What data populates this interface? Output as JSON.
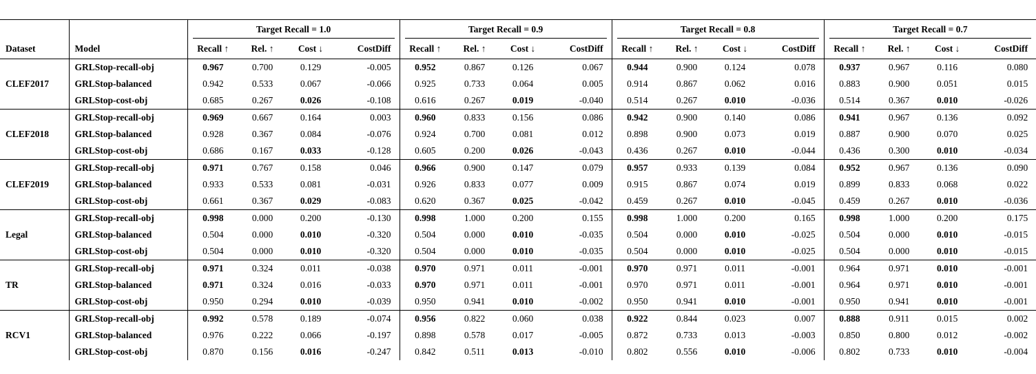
{
  "colors": {
    "text": "#000000",
    "rule": "#000000",
    "background": "#ffffff"
  },
  "table": {
    "dataset_header": "Dataset",
    "model_header": "Model",
    "col_groups": [
      {
        "label": "Target Recall = 1.0"
      },
      {
        "label": "Target Recall = 0.9"
      },
      {
        "label": "Target Recall = 0.8"
      },
      {
        "label": "Target Recall = 0.7"
      }
    ],
    "sub_headers": [
      "Recall ↑",
      "Rel. ↑",
      "Cost ↓",
      "CostDiff"
    ],
    "blocks": [
      {
        "dataset": "CLEF2017",
        "rows": [
          {
            "model": "GRLStop-recall-obj",
            "bold": [
              0,
              4,
              8,
              12
            ],
            "values": [
              "0.967",
              "0.700",
              "0.129",
              "-0.005",
              "0.952",
              "0.867",
              "0.126",
              "0.067",
              "0.944",
              "0.900",
              "0.124",
              "0.078",
              "0.937",
              "0.967",
              "0.116",
              "0.080"
            ]
          },
          {
            "model": "GRLStop-balanced",
            "bold": [],
            "values": [
              "0.942",
              "0.533",
              "0.067",
              "-0.066",
              "0.925",
              "0.733",
              "0.064",
              "0.005",
              "0.914",
              "0.867",
              "0.062",
              "0.016",
              "0.883",
              "0.900",
              "0.051",
              "0.015"
            ]
          },
          {
            "model": "GRLStop-cost-obj",
            "bold": [
              2,
              6,
              10,
              14
            ],
            "values": [
              "0.685",
              "0.267",
              "0.026",
              "-0.108",
              "0.616",
              "0.267",
              "0.019",
              "-0.040",
              "0.514",
              "0.267",
              "0.010",
              "-0.036",
              "0.514",
              "0.367",
              "0.010",
              "-0.026"
            ]
          }
        ]
      },
      {
        "dataset": "CLEF2018",
        "rows": [
          {
            "model": "GRLStop-recall-obj",
            "bold": [
              0,
              4,
              8,
              12
            ],
            "values": [
              "0.969",
              "0.667",
              "0.164",
              "0.003",
              "0.960",
              "0.833",
              "0.156",
              "0.086",
              "0.942",
              "0.900",
              "0.140",
              "0.086",
              "0.941",
              "0.967",
              "0.136",
              "0.092"
            ]
          },
          {
            "model": "GRLStop-balanced",
            "bold": [],
            "values": [
              "0.928",
              "0.367",
              "0.084",
              "-0.076",
              "0.924",
              "0.700",
              "0.081",
              "0.012",
              "0.898",
              "0.900",
              "0.073",
              "0.019",
              "0.887",
              "0.900",
              "0.070",
              "0.025"
            ]
          },
          {
            "model": "GRLStop-cost-obj",
            "bold": [
              2,
              6,
              10,
              14
            ],
            "values": [
              "0.686",
              "0.167",
              "0.033",
              "-0.128",
              "0.605",
              "0.200",
              "0.026",
              "-0.043",
              "0.436",
              "0.267",
              "0.010",
              "-0.044",
              "0.436",
              "0.300",
              "0.010",
              "-0.034"
            ]
          }
        ]
      },
      {
        "dataset": "CLEF2019",
        "rows": [
          {
            "model": "GRLStop-recall-obj",
            "bold": [
              0,
              4,
              8,
              12
            ],
            "values": [
              "0.971",
              "0.767",
              "0.158",
              "0.046",
              "0.966",
              "0.900",
              "0.147",
              "0.079",
              "0.957",
              "0.933",
              "0.139",
              "0.084",
              "0.952",
              "0.967",
              "0.136",
              "0.090"
            ]
          },
          {
            "model": "GRLStop-balanced",
            "bold": [],
            "values": [
              "0.933",
              "0.533",
              "0.081",
              "-0.031",
              "0.926",
              "0.833",
              "0.077",
              "0.009",
              "0.915",
              "0.867",
              "0.074",
              "0.019",
              "0.899",
              "0.833",
              "0.068",
              "0.022"
            ]
          },
          {
            "model": "GRLStop-cost-obj",
            "bold": [
              2,
              6,
              10,
              14
            ],
            "values": [
              "0.661",
              "0.367",
              "0.029",
              "-0.083",
              "0.620",
              "0.367",
              "0.025",
              "-0.042",
              "0.459",
              "0.267",
              "0.010",
              "-0.045",
              "0.459",
              "0.267",
              "0.010",
              "-0.036"
            ]
          }
        ]
      },
      {
        "dataset": "Legal",
        "rows": [
          {
            "model": "GRLStop-recall-obj",
            "bold": [
              0,
              4,
              8,
              12
            ],
            "values": [
              "0.998",
              "0.000",
              "0.200",
              "-0.130",
              "0.998",
              "1.000",
              "0.200",
              "0.155",
              "0.998",
              "1.000",
              "0.200",
              "0.165",
              "0.998",
              "1.000",
              "0.200",
              "0.175"
            ]
          },
          {
            "model": "GRLStop-balanced",
            "bold": [
              2,
              6,
              10,
              14
            ],
            "values": [
              "0.504",
              "0.000",
              "0.010",
              "-0.320",
              "0.504",
              "0.000",
              "0.010",
              "-0.035",
              "0.504",
              "0.000",
              "0.010",
              "-0.025",
              "0.504",
              "0.000",
              "0.010",
              "-0.015"
            ]
          },
          {
            "model": "GRLStop-cost-obj",
            "bold": [
              2,
              6,
              10,
              14
            ],
            "values": [
              "0.504",
              "0.000",
              "0.010",
              "-0.320",
              "0.504",
              "0.000",
              "0.010",
              "-0.035",
              "0.504",
              "0.000",
              "0.010",
              "-0.025",
              "0.504",
              "0.000",
              "0.010",
              "-0.015"
            ]
          }
        ]
      },
      {
        "dataset": "TR",
        "rows": [
          {
            "model": "GRLStop-recall-obj",
            "bold": [
              0,
              4,
              8,
              14
            ],
            "values": [
              "0.971",
              "0.324",
              "0.011",
              "-0.038",
              "0.970",
              "0.971",
              "0.011",
              "-0.001",
              "0.970",
              "0.971",
              "0.011",
              "-0.001",
              "0.964",
              "0.971",
              "0.010",
              "-0.001"
            ]
          },
          {
            "model": "GRLStop-balanced",
            "bold": [
              0,
              4,
              14
            ],
            "values": [
              "0.971",
              "0.324",
              "0.016",
              "-0.033",
              "0.970",
              "0.971",
              "0.011",
              "-0.001",
              "0.970",
              "0.971",
              "0.011",
              "-0.001",
              "0.964",
              "0.971",
              "0.010",
              "-0.001"
            ]
          },
          {
            "model": "GRLStop-cost-obj",
            "bold": [
              2,
              6,
              10,
              14
            ],
            "values": [
              "0.950",
              "0.294",
              "0.010",
              "-0.039",
              "0.950",
              "0.941",
              "0.010",
              "-0.002",
              "0.950",
              "0.941",
              "0.010",
              "-0.001",
              "0.950",
              "0.941",
              "0.010",
              "-0.001"
            ]
          }
        ]
      },
      {
        "dataset": "RCV1",
        "rows": [
          {
            "model": "GRLStop-recall-obj",
            "bold": [
              0,
              4,
              8,
              12
            ],
            "values": [
              "0.992",
              "0.578",
              "0.189",
              "-0.074",
              "0.956",
              "0.822",
              "0.060",
              "0.038",
              "0.922",
              "0.844",
              "0.023",
              "0.007",
              "0.888",
              "0.911",
              "0.015",
              "0.002"
            ]
          },
          {
            "model": "GRLStop-balanced",
            "bold": [],
            "values": [
              "0.976",
              "0.222",
              "0.066",
              "-0.197",
              "0.898",
              "0.578",
              "0.017",
              "-0.005",
              "0.872",
              "0.733",
              "0.013",
              "-0.003",
              "0.850",
              "0.800",
              "0.012",
              "-0.002"
            ]
          },
          {
            "model": "GRLStop-cost-obj",
            "bold": [
              2,
              6,
              10,
              14
            ],
            "values": [
              "0.870",
              "0.156",
              "0.016",
              "-0.247",
              "0.842",
              "0.511",
              "0.013",
              "-0.010",
              "0.802",
              "0.556",
              "0.010",
              "-0.006",
              "0.802",
              "0.733",
              "0.010",
              "-0.004"
            ]
          }
        ]
      }
    ]
  }
}
